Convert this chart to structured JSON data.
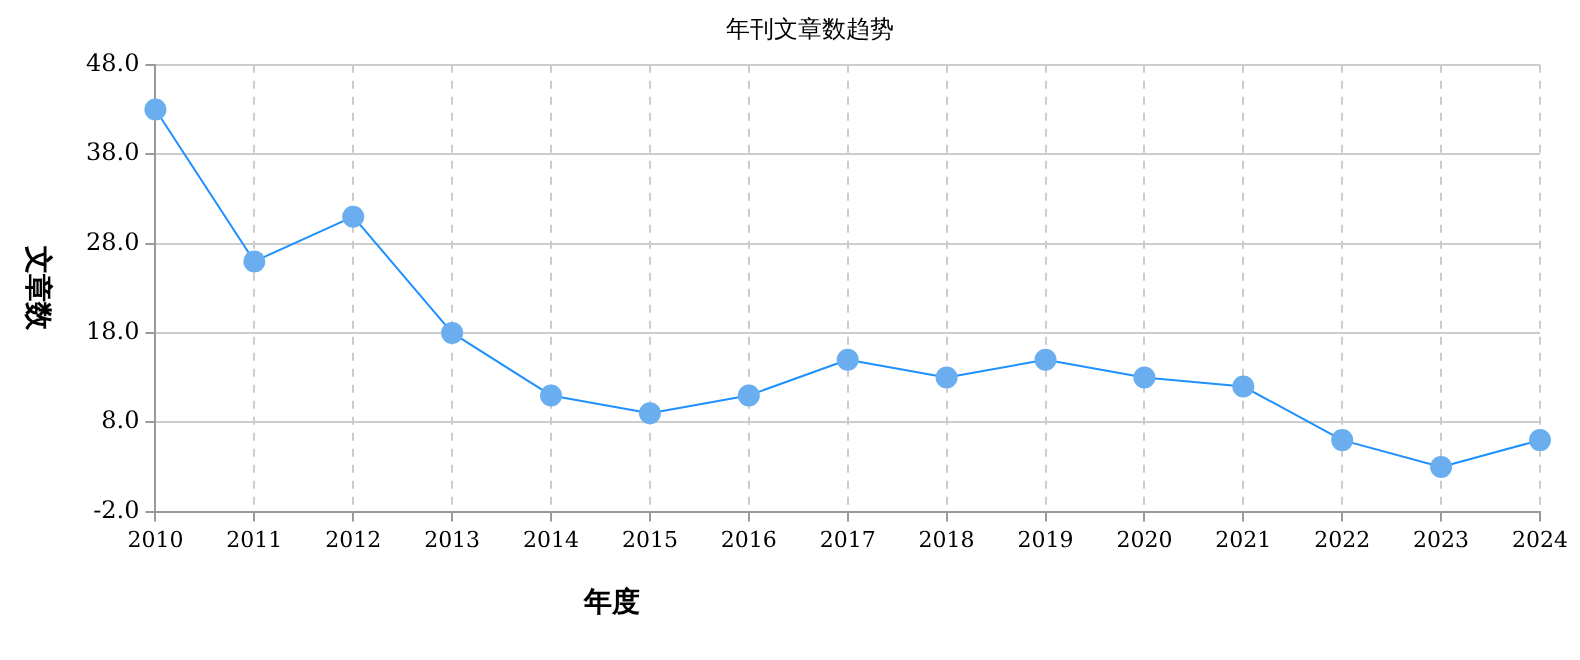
{
  "chart_data": {
    "type": "line",
    "title": "年刊文章数趋势",
    "xlabel": "年度",
    "ylabel": "文章数",
    "categories": [
      "2010",
      "2011",
      "2012",
      "2013",
      "2014",
      "2015",
      "2016",
      "2017",
      "2018",
      "2019",
      "2020",
      "2021",
      "2022",
      "2023",
      "2024"
    ],
    "series": [
      {
        "color": "#1e90ff",
        "values": [
          43,
          26,
          31,
          18,
          11,
          9,
          11,
          15,
          13,
          15,
          13,
          12,
          6,
          3,
          6
        ]
      }
    ],
    "ylim": [
      -2,
      48
    ],
    "yticks": [
      {
        "value": -2,
        "label": "-2.0"
      },
      {
        "value": 8,
        "label": "8.0"
      },
      {
        "value": 18,
        "label": "18.0"
      },
      {
        "value": 28,
        "label": "28.0"
      },
      {
        "value": 38,
        "label": "38.0"
      },
      {
        "value": 48,
        "label": "48.0"
      }
    ],
    "grid": true,
    "marker": "circle",
    "line_style": "solid",
    "legend": false
  }
}
